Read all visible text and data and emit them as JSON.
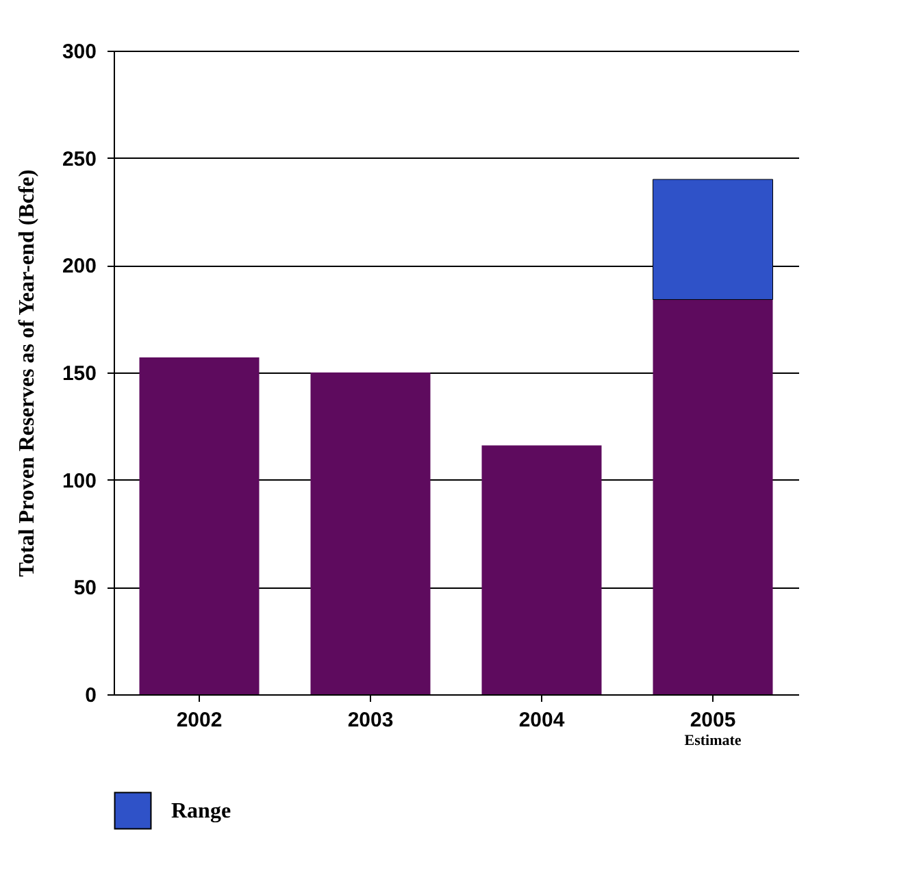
{
  "chart_data": {
    "type": "bar",
    "ylabel": "Total Proven Reserves as of Year-end (Bcfe)",
    "categories": [
      "2002",
      "2003",
      "2004",
      "2005"
    ],
    "series": [
      {
        "color": "#5e0b5e",
        "values": [
          157,
          150,
          116,
          184
        ]
      },
      {
        "name": "Range",
        "color": "#2f52c8",
        "values": [
          null,
          null,
          null,
          56
        ]
      }
    ],
    "stacked": true,
    "ylim": [
      0,
      300
    ],
    "yticks": [
      0,
      50,
      100,
      150,
      200,
      250,
      300
    ],
    "grid": "y",
    "legend": "bottom",
    "annotations": [
      "Estimate"
    ]
  }
}
